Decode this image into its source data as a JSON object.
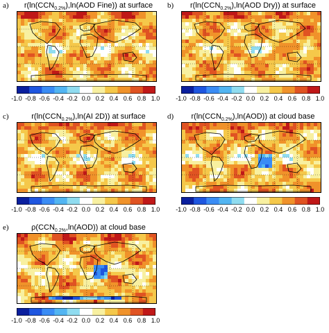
{
  "colorbar": {
    "ticks": [
      "-1.0",
      "-0.8",
      "-0.6",
      "-0.4",
      "-0.2",
      "0.0",
      "0.2",
      "0.4",
      "0.6",
      "0.8",
      "1.0"
    ],
    "colors": [
      "#0a1f9e",
      "#1e56e0",
      "#3a8cf5",
      "#52b5f2",
      "#8fdcf0",
      "#ffffff",
      "#f8f0a0",
      "#f5c84a",
      "#f0922a",
      "#e05322",
      "#c01818"
    ]
  },
  "panels": [
    {
      "letter": "a)",
      "pre": "r(ln(CCN",
      "sub": "0.2%",
      "post": "),ln(AOD Fine)) at surface"
    },
    {
      "letter": "b)",
      "pre": "r(ln(CCN",
      "sub": "0.2%",
      "post": "),ln(AOD Dry)) at surface"
    },
    {
      "letter": "c)",
      "pre": "r(ln(CCN",
      "sub": "0.2%",
      "post": "),ln(AI 2D)) at surface"
    },
    {
      "letter": "d)",
      "pre": "r(ln(CCN",
      "sub": "0.2%",
      "post": "),ln(AOD)) at cloud base"
    },
    {
      "letter": "e)",
      "pre": "ρ(CCN",
      "sub": "0.2%",
      "post": ",ln(AOD)) at cloud base"
    }
  ]
}
